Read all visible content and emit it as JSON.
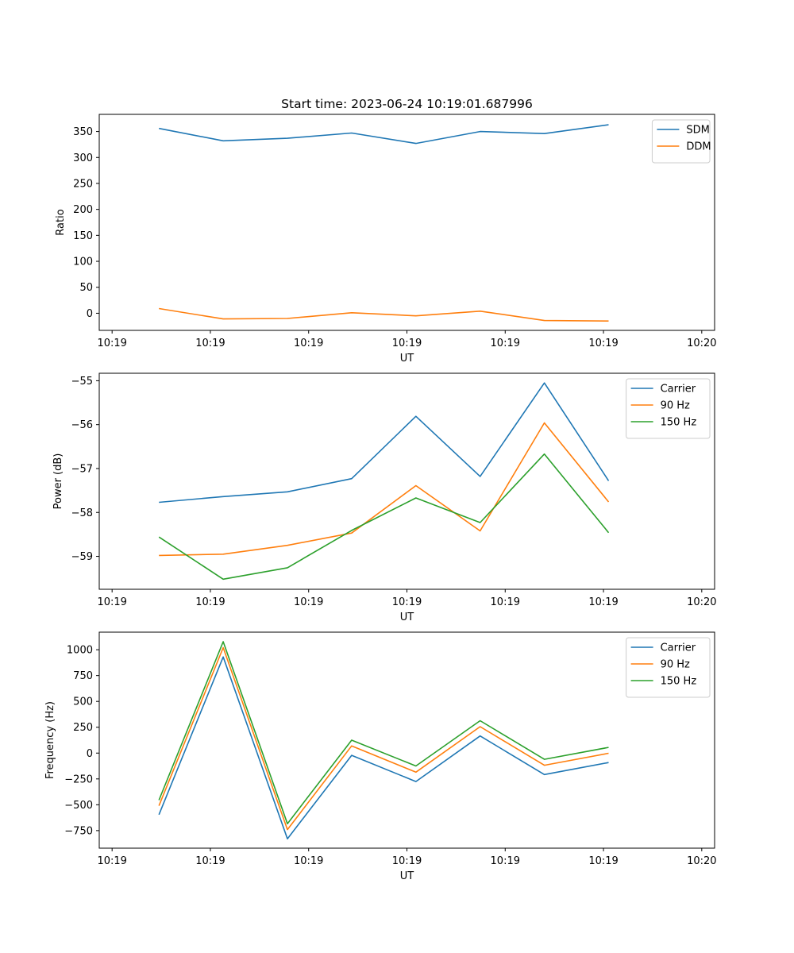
{
  "figure": {
    "title": "Start time: 2023-06-24 10:19:01.687996"
  },
  "chart_data": [
    {
      "type": "line",
      "xlabel": "UT",
      "ylabel": "Ratio",
      "x": [
        1,
        2,
        3,
        4,
        5,
        6,
        7,
        8
      ],
      "x_ticks": [
        {
          "value": 0.27,
          "label": "10:19"
        },
        {
          "value": 1.8,
          "label": "10:19"
        },
        {
          "value": 3.33,
          "label": "10:19"
        },
        {
          "value": 4.86,
          "label": "10:19"
        },
        {
          "value": 6.39,
          "label": "10:19"
        },
        {
          "value": 7.92,
          "label": "10:19"
        },
        {
          "value": 9.45,
          "label": "10:20"
        }
      ],
      "xlim": [
        0.07,
        9.65
      ],
      "ylim": [
        -33,
        383
      ],
      "y_ticks": [
        0,
        50,
        100,
        150,
        200,
        250,
        300,
        350
      ],
      "legend_position": "top-right",
      "series": [
        {
          "name": "SDM",
          "color": "#1f77b4",
          "values": [
            356,
            332,
            337,
            347,
            327,
            350,
            346,
            363
          ]
        },
        {
          "name": "DDM",
          "color": "#ff7f0e",
          "values": [
            9,
            -11,
            -10,
            1,
            -5,
            4,
            -14,
            -15
          ]
        }
      ]
    },
    {
      "type": "line",
      "xlabel": "UT",
      "ylabel": "Power (dB)",
      "x": [
        1,
        2,
        3,
        4,
        5,
        6,
        7,
        8
      ],
      "x_ticks": [
        {
          "value": 0.27,
          "label": "10:19"
        },
        {
          "value": 1.8,
          "label": "10:19"
        },
        {
          "value": 3.33,
          "label": "10:19"
        },
        {
          "value": 4.86,
          "label": "10:19"
        },
        {
          "value": 6.39,
          "label": "10:19"
        },
        {
          "value": 7.92,
          "label": "10:19"
        },
        {
          "value": 9.45,
          "label": "10:20"
        }
      ],
      "xlim": [
        0.07,
        9.65
      ],
      "ylim": [
        -59.75,
        -54.83
      ],
      "y_ticks": [
        -59,
        -58,
        -57,
        -56,
        -55
      ],
      "y_tick_labels": [
        "−59",
        "−58",
        "−57",
        "−56",
        "−55"
      ],
      "legend_position": "top-right",
      "series": [
        {
          "name": "Carrier",
          "color": "#1f77b4",
          "values": [
            -57.77,
            -57.64,
            -57.53,
            -57.23,
            -55.81,
            -57.18,
            -55.05,
            -57.28
          ]
        },
        {
          "name": "90 Hz",
          "color": "#ff7f0e",
          "values": [
            -58.98,
            -58.95,
            -58.75,
            -58.47,
            -57.39,
            -58.42,
            -55.96,
            -57.76
          ]
        },
        {
          "name": "150 Hz",
          "color": "#2ca02c",
          "values": [
            -58.56,
            -59.52,
            -59.26,
            -58.41,
            -57.67,
            -58.23,
            -56.67,
            -58.46
          ]
        }
      ]
    },
    {
      "type": "line",
      "xlabel": "UT",
      "ylabel": "Frequency (Hz)",
      "x": [
        1,
        2,
        3,
        4,
        5,
        6,
        7,
        8
      ],
      "x_ticks": [
        {
          "value": 0.27,
          "label": "10:19"
        },
        {
          "value": 1.8,
          "label": "10:19"
        },
        {
          "value": 3.33,
          "label": "10:19"
        },
        {
          "value": 4.86,
          "label": "10:19"
        },
        {
          "value": 6.39,
          "label": "10:19"
        },
        {
          "value": 7.92,
          "label": "10:19"
        },
        {
          "value": 9.45,
          "label": "10:20"
        }
      ],
      "xlim": [
        0.07,
        9.65
      ],
      "ylim": [
        -920,
        1170
      ],
      "y_ticks": [
        -750,
        -500,
        -250,
        0,
        250,
        500,
        750,
        1000
      ],
      "y_tick_labels": [
        "−750",
        "−500",
        "−250",
        "0",
        "250",
        "500",
        "750",
        "1000"
      ],
      "legend_position": "top-right",
      "series": [
        {
          "name": "Carrier",
          "color": "#1f77b4",
          "values": [
            -596,
            930,
            -829,
            -22,
            -275,
            166,
            -208,
            -92
          ]
        },
        {
          "name": "90 Hz",
          "color": "#ff7f0e",
          "values": [
            -510,
            1020,
            -740,
            70,
            -185,
            256,
            -118,
            -2
          ]
        },
        {
          "name": "150 Hz",
          "color": "#2ca02c",
          "values": [
            -455,
            1078,
            -683,
            125,
            -125,
            313,
            -60,
            55
          ]
        }
      ]
    }
  ]
}
